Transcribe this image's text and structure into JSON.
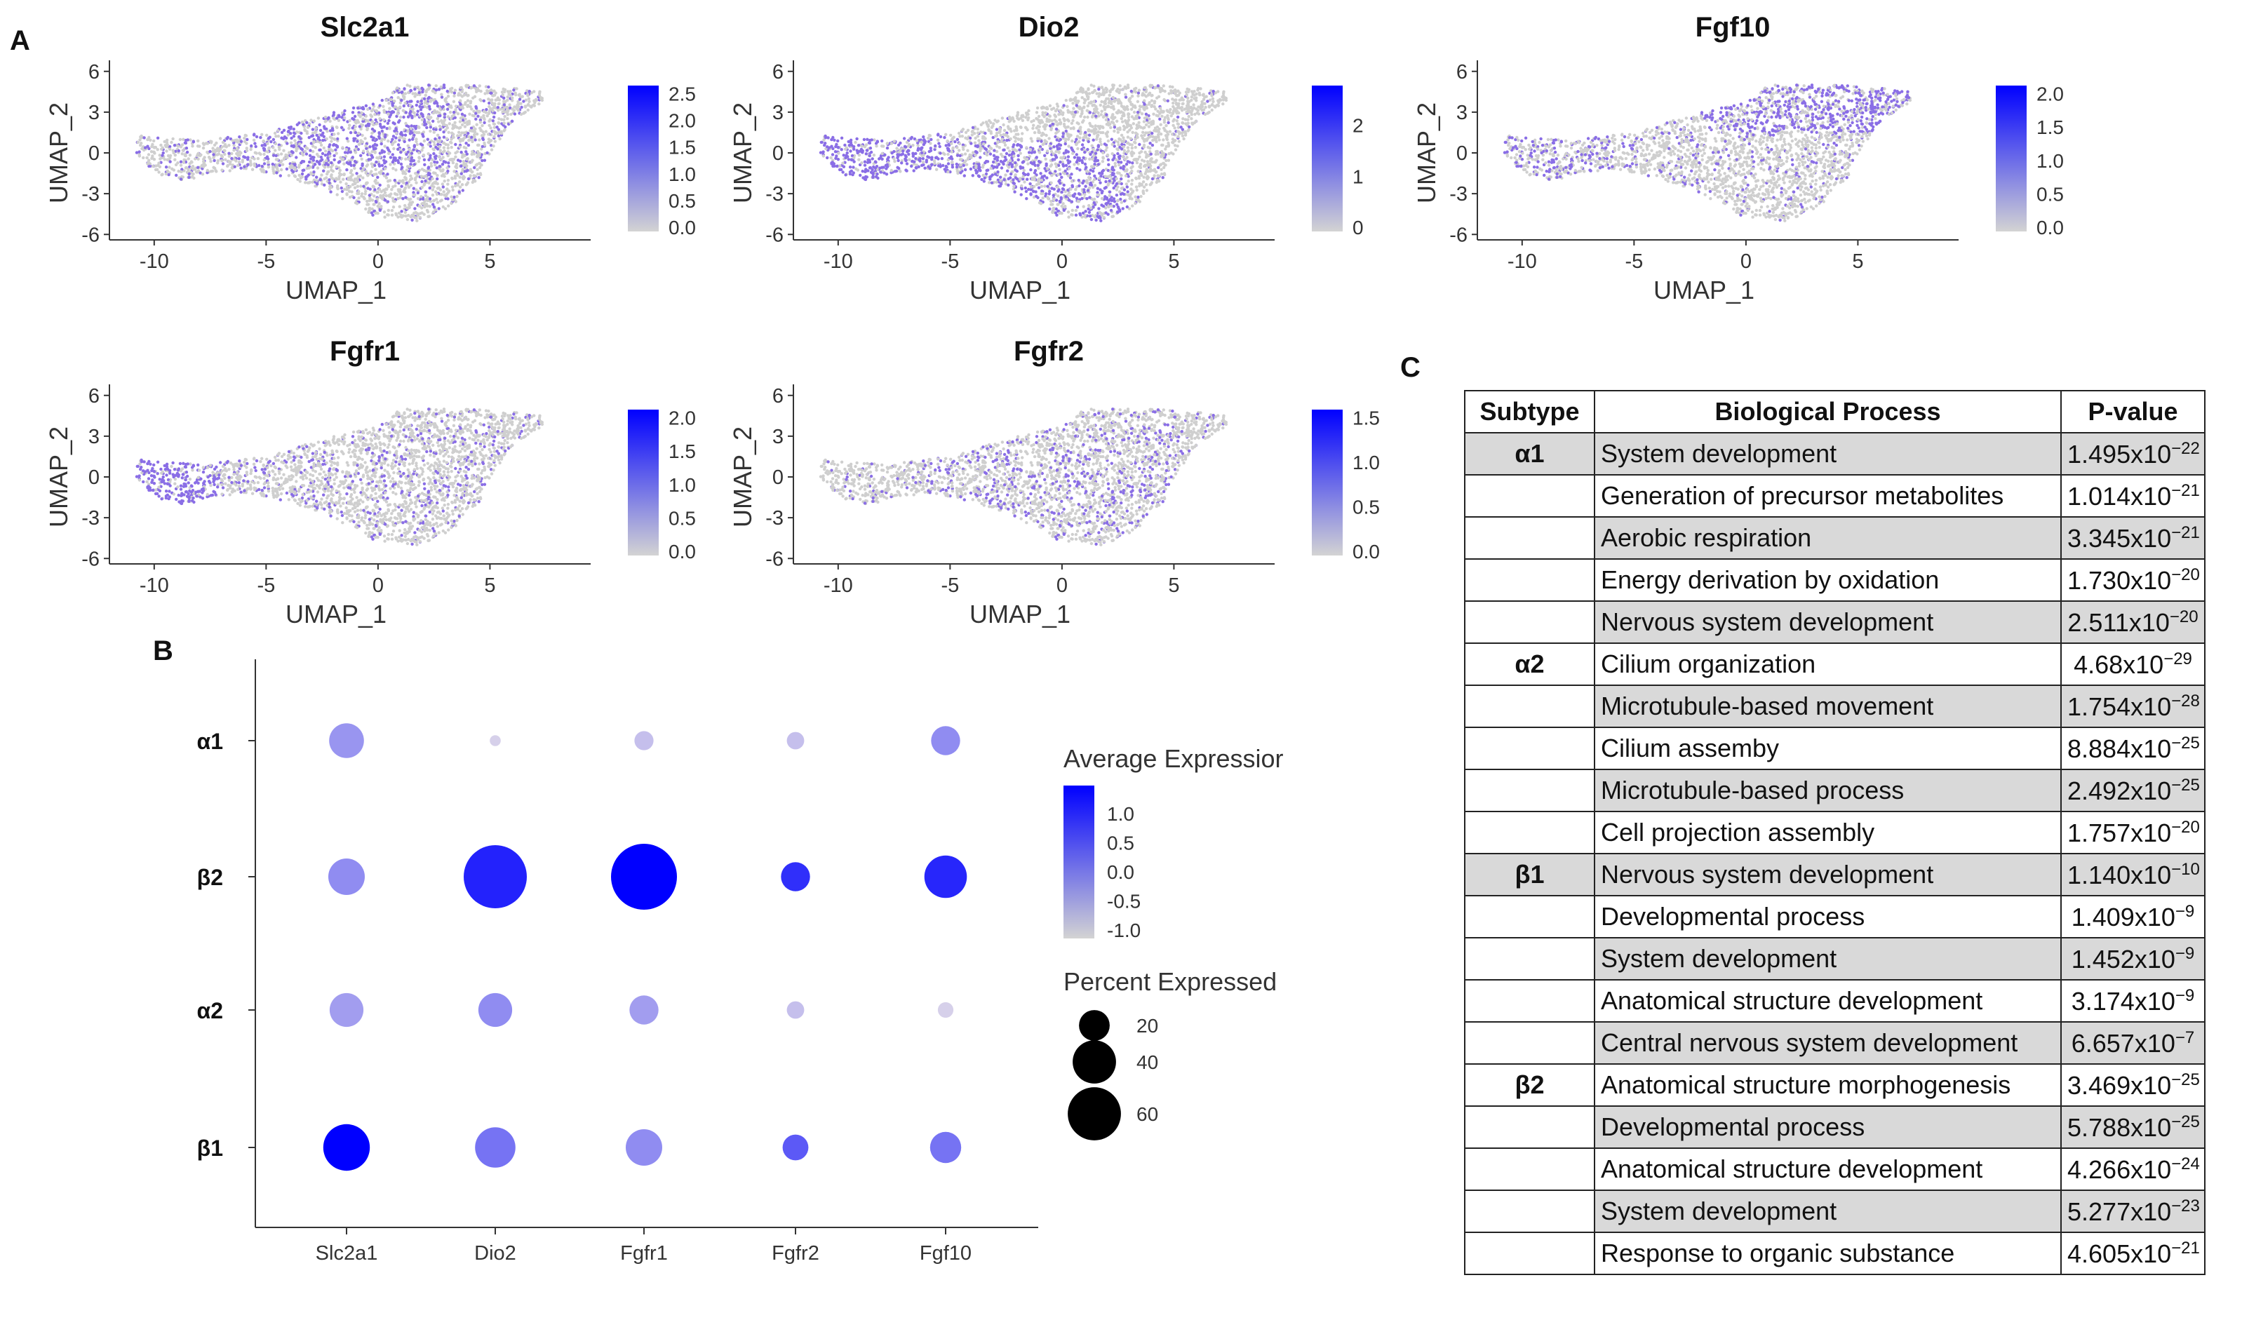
{
  "panels": {
    "a": "A",
    "b": "B",
    "c": "C"
  },
  "colors": {
    "low": "#d3d3d3",
    "high": "#0000ff",
    "umap_points": "#8a6ee6",
    "grey_points": "#cfcfcf"
  },
  "umap": {
    "x_label": "UMAP_1",
    "y_label": "UMAP_2",
    "x_ticks": [
      "-10",
      "-5",
      "0",
      "5"
    ],
    "y_ticks": [
      "6",
      "3",
      "0",
      "-3",
      "-6"
    ],
    "plots": [
      {
        "gene": "Slc2a1",
        "colorbar_ticks": [
          "2.5",
          "2.0",
          "1.5",
          "1.0",
          "0.5",
          "0.0"
        ]
      },
      {
        "gene": "Dio2",
        "colorbar_ticks": [
          "2",
          "1",
          "0"
        ]
      },
      {
        "gene": "Fgf10",
        "colorbar_ticks": [
          "2.0",
          "1.5",
          "1.0",
          "0.5",
          "0.0"
        ]
      },
      {
        "gene": "Fgfr1",
        "colorbar_ticks": [
          "2.0",
          "1.5",
          "1.0",
          "0.5",
          "0.0"
        ]
      },
      {
        "gene": "Fgfr2",
        "colorbar_ticks": [
          "1.5",
          "1.0",
          "0.5",
          "0.0"
        ]
      }
    ]
  },
  "chart_data": [
    {
      "type": "scatter",
      "subtype": "dot-plot",
      "categories": [
        "Slc2a1",
        "Dio2",
        "Fgfr1",
        "Fgfr2",
        "Fgf10"
      ],
      "groups": [
        "α1",
        "β2",
        "α2",
        "β1"
      ],
      "values": [
        {
          "group": "α1",
          "avg_expression": [
            -0.3,
            -1.0,
            -0.8,
            -0.8,
            -0.2
          ],
          "percent_expressed": [
            20,
            2,
            6,
            5,
            14
          ]
        },
        {
          "group": "β2",
          "avg_expression": [
            -0.2,
            1.05,
            1.45,
            0.9,
            1.0
          ],
          "percent_expressed": [
            22,
            66,
            72,
            14,
            30
          ]
        },
        {
          "group": "α2",
          "avg_expression": [
            -0.4,
            -0.2,
            -0.4,
            -0.8,
            -1.0
          ],
          "percent_expressed": [
            19,
            19,
            14,
            5,
            4
          ]
        },
        {
          "group": "β1",
          "avg_expression": [
            1.45,
            0.1,
            -0.2,
            0.4,
            0.1
          ],
          "percent_expressed": [
            36,
            27,
            22,
            11,
            16
          ]
        }
      ],
      "legend": {
        "color_title": "Average Expressior",
        "color_ticks": [
          "1.0",
          "0.5",
          "0.0",
          "-0.5",
          "-1.0"
        ],
        "size_title": "Percent Expressed",
        "size_ticks": [
          "20",
          "40",
          "60"
        ]
      }
    },
    {
      "type": "table",
      "columns": [
        "Subtype",
        "Biological Process",
        "P-value"
      ],
      "rows": [
        {
          "subtype": "α1",
          "process": "System development",
          "p_base": "1.495x10",
          "p_exp": "−22"
        },
        {
          "subtype": "",
          "process": "Generation of precursor metabolites",
          "p_base": "1.014x10",
          "p_exp": "−21"
        },
        {
          "subtype": "",
          "process": "Aerobic respiration",
          "p_base": "3.345x10",
          "p_exp": "−21"
        },
        {
          "subtype": "",
          "process": "Energy derivation by oxidation",
          "p_base": "1.730x10",
          "p_exp": "−20"
        },
        {
          "subtype": "",
          "process": "Nervous system development",
          "p_base": "2.511x10",
          "p_exp": "−20"
        },
        {
          "subtype": "α2",
          "process": "Cilium organization",
          "p_base": "4.68x10",
          "p_exp": "−29"
        },
        {
          "subtype": "",
          "process": "Microtubule-based movement",
          "p_base": "1.754x10",
          "p_exp": "−28"
        },
        {
          "subtype": "",
          "process": "Cilium assemby",
          "p_base": "8.884x10",
          "p_exp": "−25"
        },
        {
          "subtype": "",
          "process": "Microtubule-based process",
          "p_base": "2.492x10",
          "p_exp": "−25"
        },
        {
          "subtype": "",
          "process": "Cell projection assembly",
          "p_base": "1.757x10",
          "p_exp": "−20"
        },
        {
          "subtype": "β1",
          "process": "Nervous system development",
          "p_base": "1.140x10",
          "p_exp": "−10"
        },
        {
          "subtype": "",
          "process": "Developmental process",
          "p_base": "1.409x10",
          "p_exp": "−9"
        },
        {
          "subtype": "",
          "process": "System development",
          "p_base": "1.452x10",
          "p_exp": "−9"
        },
        {
          "subtype": "",
          "process": "Anatomical structure development",
          "p_base": "3.174x10",
          "p_exp": "−9"
        },
        {
          "subtype": "",
          "process": "Central nervous system development",
          "p_base": "6.657x10",
          "p_exp": "−7"
        },
        {
          "subtype": "β2",
          "process": "Anatomical structure morphogenesis",
          "p_base": "3.469x10",
          "p_exp": "−25"
        },
        {
          "subtype": "",
          "process": "Developmental process",
          "p_base": "5.788x10",
          "p_exp": "−25"
        },
        {
          "subtype": "",
          "process": "Anatomical structure development",
          "p_base": "4.266x10",
          "p_exp": "−24"
        },
        {
          "subtype": "",
          "process": "System development",
          "p_base": "5.277x10",
          "p_exp": "−23"
        },
        {
          "subtype": "",
          "process": "Response to organic substance",
          "p_base": "4.605x10",
          "p_exp": "−21"
        }
      ]
    }
  ]
}
